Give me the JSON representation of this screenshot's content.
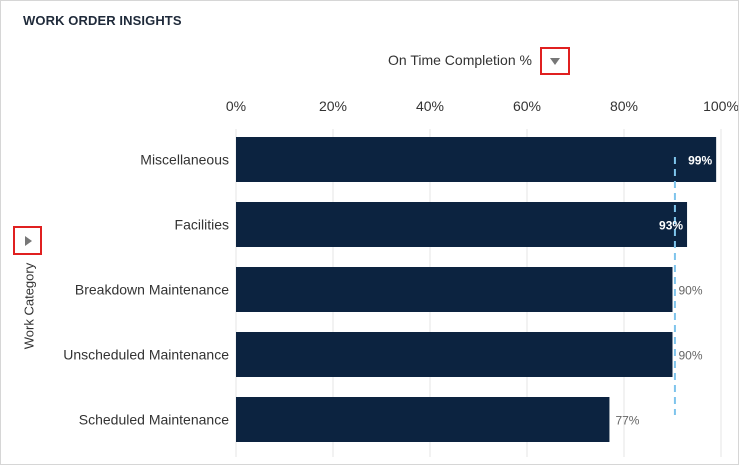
{
  "panel": {
    "title": "WORK ORDER INSIGHTS",
    "measure_label": "On Time Completion %",
    "measure_dropdown_icon": "triangle-down-icon",
    "category_expand_icon": "triangle-right-icon"
  },
  "colors": {
    "bar": "#0c2340",
    "target_line": "#7ec4ec",
    "highlight_border": "#e02020"
  },
  "chart_data": {
    "type": "bar",
    "orientation": "horizontal",
    "title": "",
    "xlabel": "",
    "ylabel": "Work Category",
    "xlim": [
      0,
      100
    ],
    "x_ticks": [
      0,
      20,
      40,
      60,
      80,
      100
    ],
    "x_tick_labels": [
      "0%",
      "20%",
      "40%",
      "60%",
      "80%",
      "100%"
    ],
    "x_axis_position": "top",
    "grid": "vertical",
    "categories": [
      "Miscellaneous",
      "Facilities",
      "Breakdown Maintenance",
      "Unscheduled Maintenance",
      "Scheduled Maintenance"
    ],
    "values": [
      99,
      93,
      90,
      90,
      77
    ],
    "data_labels": [
      "99%",
      "93%",
      "90%",
      "90%",
      "77%"
    ],
    "reference_line": {
      "value": 90.5,
      "style": "dashed"
    }
  }
}
